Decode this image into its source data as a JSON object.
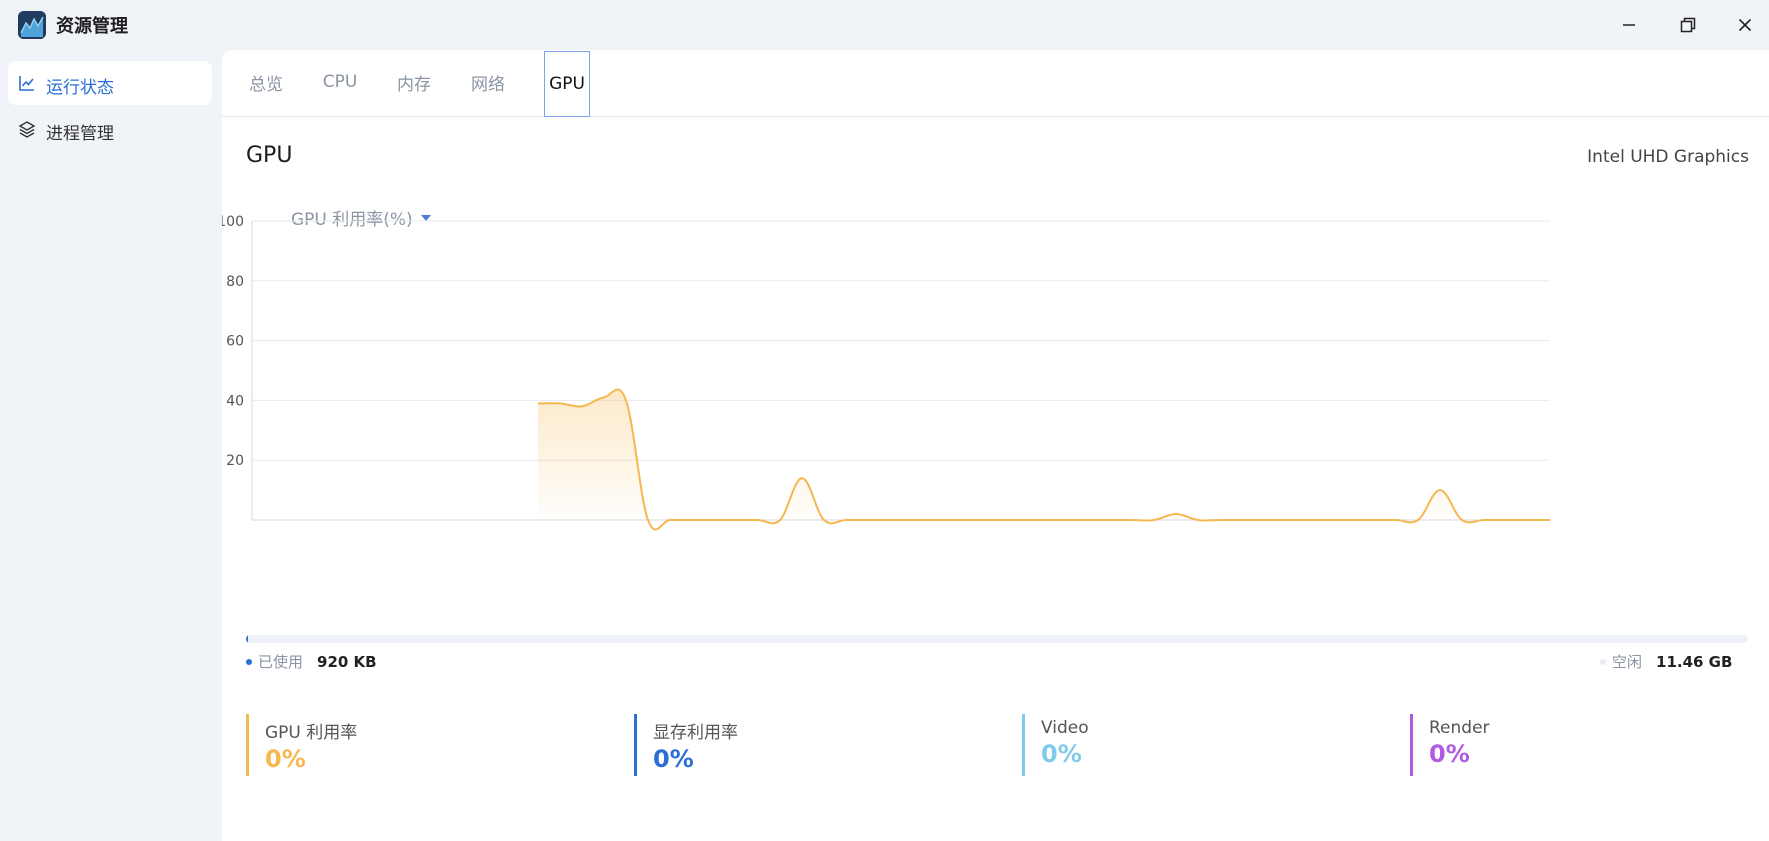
{
  "app": {
    "title": "资源管理"
  },
  "window": {
    "minimize_icon": "minimize-icon",
    "maximize_icon": "restore-icon",
    "close_icon": "close-icon"
  },
  "sidebar": {
    "items": [
      {
        "label": "运行状态",
        "icon": "line-chart-icon",
        "active": true
      },
      {
        "label": "进程管理",
        "icon": "layers-icon",
        "active": false
      }
    ]
  },
  "tabs": [
    {
      "label": "总览",
      "active": false
    },
    {
      "label": "CPU",
      "active": false
    },
    {
      "label": "内存",
      "active": false
    },
    {
      "label": "网络",
      "active": false
    },
    {
      "label": "GPU",
      "active": true
    }
  ],
  "gpu": {
    "title": "GPU",
    "device": "Intel UHD Graphics",
    "metric_select": "GPU 利用率(%)"
  },
  "memory": {
    "used_label": "已使用",
    "used_value": "920 KB",
    "free_label": "空闲",
    "free_value": "11.46 GB",
    "used_fraction": 0.0001
  },
  "stats": [
    {
      "name": "GPU 利用率",
      "value": "0%",
      "color": "#f5b74f"
    },
    {
      "name": "显存利用率",
      "value": "0%",
      "color": "#2b6fd6"
    },
    {
      "name": "Video",
      "value": "0%",
      "color": "#7fcbea"
    },
    {
      "name": "Render",
      "value": "0%",
      "color": "#b05ce0"
    }
  ],
  "chart_data": {
    "type": "area",
    "ylim": [
      0,
      100
    ],
    "y_ticks": [
      "100",
      "80",
      "60",
      "40",
      "20"
    ],
    "grid": true,
    "series": [
      {
        "color": "#f5b74f",
        "x": [
          0,
          1,
          2,
          3,
          4,
          5,
          6,
          7,
          8,
          9,
          10,
          11,
          12,
          13,
          14,
          15,
          16,
          17,
          18,
          19,
          20,
          21,
          22,
          23,
          24,
          25,
          26,
          27,
          28,
          29,
          30,
          31,
          32,
          33,
          34,
          35,
          36,
          37,
          38,
          39,
          40,
          41,
          42,
          43,
          44,
          45,
          46,
          47,
          48,
          49,
          50,
          51,
          52,
          53,
          54,
          55,
          56,
          57,
          58,
          59
        ],
        "y": [
          null,
          null,
          null,
          null,
          null,
          null,
          null,
          null,
          null,
          null,
          null,
          null,
          null,
          39,
          39,
          38,
          41,
          40,
          0,
          0,
          0,
          0,
          0,
          0,
          0,
          14,
          0,
          0,
          0,
          0,
          0,
          0,
          0,
          0,
          0,
          0,
          0,
          0,
          0,
          0,
          0,
          0,
          2,
          0,
          0,
          0,
          0,
          0,
          0,
          0,
          0,
          0,
          0,
          0,
          10,
          0,
          0,
          0,
          0,
          0
        ]
      }
    ]
  }
}
